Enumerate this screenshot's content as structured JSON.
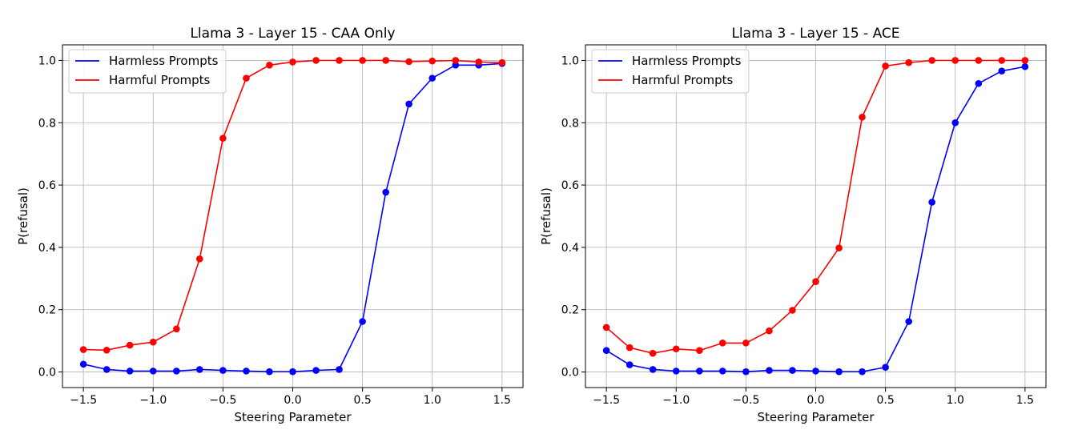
{
  "chart_data": [
    {
      "type": "line",
      "title": "Llama 3 - Layer 15 - CAA Only",
      "xlabel": "Steering Parameter",
      "ylabel": "P(refusal)",
      "xlim": [
        -1.65,
        1.65
      ],
      "ylim": [
        -0.05,
        1.05
      ],
      "xticks": [
        -1.5,
        -1.0,
        -0.5,
        0.0,
        0.5,
        1.0,
        1.5
      ],
      "xtick_labels": [
        "−1.5",
        "−1.0",
        "−0.5",
        "0.0",
        "0.5",
        "1.0",
        "1.5"
      ],
      "yticks": [
        0.0,
        0.2,
        0.4,
        0.6,
        0.8,
        1.0
      ],
      "ytick_labels": [
        "0.0",
        "0.2",
        "0.4",
        "0.6",
        "0.8",
        "1.0"
      ],
      "grid": true,
      "legend_position": "upper-left",
      "x": [
        -1.5,
        -1.333,
        -1.167,
        -1.0,
        -0.833,
        -0.667,
        -0.5,
        -0.333,
        -0.167,
        0.0,
        0.167,
        0.333,
        0.5,
        0.667,
        0.833,
        1.0,
        1.167,
        1.333,
        1.5
      ],
      "series": [
        {
          "name": "Harmless Prompts",
          "color": "#0000ff",
          "values": [
            0.025,
            0.008,
            0.003,
            0.003,
            0.003,
            0.008,
            0.005,
            0.003,
            0.001,
            0.001,
            0.005,
            0.008,
            0.162,
            0.577,
            0.86,
            0.943,
            0.985,
            0.985,
            0.99
          ]
        },
        {
          "name": "Harmful Prompts",
          "color": "#ff0000",
          "values": [
            0.072,
            0.07,
            0.086,
            0.096,
            0.138,
            0.363,
            0.75,
            0.943,
            0.985,
            0.995,
            1.0,
            1.0,
            1.0,
            1.0,
            0.996,
            0.998,
            1.0,
            0.995,
            0.993
          ]
        }
      ]
    },
    {
      "type": "line",
      "title": "Llama 3 - Layer 15 - ACE",
      "xlabel": "Steering Parameter",
      "ylabel": "P(refusal)",
      "xlim": [
        -1.65,
        1.65
      ],
      "ylim": [
        -0.05,
        1.05
      ],
      "xticks": [
        -1.5,
        -1.0,
        -0.5,
        0.0,
        0.5,
        1.0,
        1.5
      ],
      "xtick_labels": [
        "−1.5",
        "−1.0",
        "−0.5",
        "0.0",
        "0.5",
        "1.0",
        "1.5"
      ],
      "yticks": [
        0.0,
        0.2,
        0.4,
        0.6,
        0.8,
        1.0
      ],
      "ytick_labels": [
        "0.0",
        "0.2",
        "0.4",
        "0.6",
        "0.8",
        "1.0"
      ],
      "grid": true,
      "legend_position": "upper-left",
      "x": [
        -1.5,
        -1.333,
        -1.167,
        -1.0,
        -0.833,
        -0.667,
        -0.5,
        -0.333,
        -0.167,
        0.0,
        0.167,
        0.333,
        0.5,
        0.667,
        0.833,
        1.0,
        1.167,
        1.333,
        1.5
      ],
      "series": [
        {
          "name": "Harmless Prompts",
          "color": "#0000ff",
          "values": [
            0.069,
            0.023,
            0.008,
            0.003,
            0.003,
            0.003,
            0.001,
            0.005,
            0.005,
            0.003,
            0.001,
            0.001,
            0.015,
            0.162,
            0.545,
            0.8,
            0.926,
            0.966,
            0.98
          ]
        },
        {
          "name": "Harmful Prompts",
          "color": "#ff0000",
          "values": [
            0.143,
            0.078,
            0.06,
            0.074,
            0.069,
            0.093,
            0.093,
            0.132,
            0.198,
            0.29,
            0.398,
            0.818,
            0.982,
            0.993,
            1.0,
            1.0,
            1.0,
            1.0,
            1.0
          ]
        }
      ]
    }
  ]
}
